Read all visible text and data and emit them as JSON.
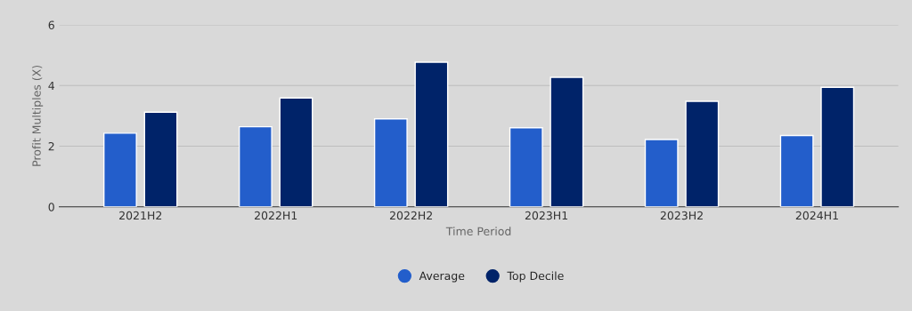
{
  "chart_data": {
    "type": "bar",
    "xlabel": "Time Period",
    "ylabel": "Profit Multiples (X)",
    "categories": [
      "2021H2",
      "2022H1",
      "2022H2",
      "2023H1",
      "2023H2",
      "2024H1"
    ],
    "series": [
      {
        "name": "Average",
        "color": "#235ecb",
        "values": [
          2.43,
          2.64,
          2.9,
          2.61,
          2.22,
          2.35
        ]
      },
      {
        "name": "Top Decile",
        "color": "#002369",
        "values": [
          3.12,
          3.59,
          4.77,
          4.27,
          3.48,
          3.94
        ]
      }
    ],
    "ylim": [
      0,
      6
    ],
    "yticks": [
      0,
      2,
      4,
      6
    ],
    "grid": "y",
    "legend": "bottom"
  }
}
